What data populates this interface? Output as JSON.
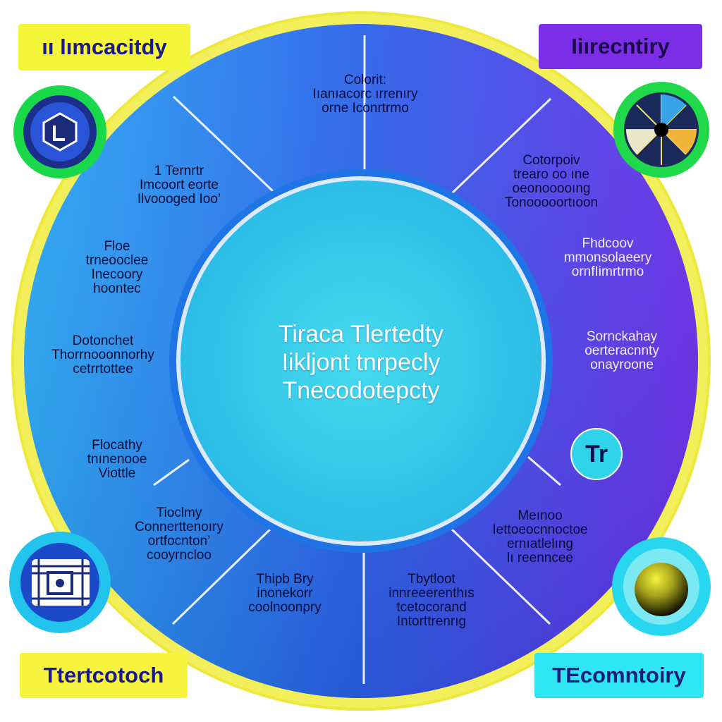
{
  "corner_labels": {
    "top_left": "ıı lımcacitdy",
    "top_right": "Iiırecntiry",
    "bottom_left": "Ttertcotoch",
    "bottom_right": "TEcomntoiry"
  },
  "center": {
    "lines": [
      "Tiraca  Tlertedty",
      "Iikljont tnrpecly",
      "Tnecodotepcty"
    ]
  },
  "segments": [
    {
      "id": "top",
      "lines": [
        "Colorit:",
        "Iıanıacorc ırrenıry",
        "orne Iconrtrmo"
      ]
    },
    {
      "id": "upper-left",
      "lines": [
        "1  Ternrtr",
        "Imcoort eorte",
        "Ilvoooged Ioo’"
      ]
    },
    {
      "id": "left-1",
      "lines": [
        "Floe",
        "trneooclee",
        "Inecoory",
        "hoontec"
      ]
    },
    {
      "id": "left-2",
      "lines": [
        "Dotonchet",
        "Thorrnooonnorhy",
        "cetrrtottee"
      ]
    },
    {
      "id": "left-3",
      "lines": [
        "Flocathy",
        "tnınenooe",
        "Viottle"
      ]
    },
    {
      "id": "lower-left",
      "lines": [
        "Tioclmy",
        "Connerttenoıry",
        "ortfocnton’",
        "cooyrncloo"
      ]
    },
    {
      "id": "bottom-left",
      "lines": [
        "Thipb Bry",
        "inonekorr",
        "coolnoonpry"
      ]
    },
    {
      "id": "bottom-right",
      "lines": [
        "Tbytloot",
        "innreeerenthıs",
        "tcetocorand",
        "Intorttrenrıg"
      ]
    },
    {
      "id": "upper-right",
      "lines": [
        "Cotorpoiv",
        "trearo oo ıne",
        "oeonooooıng",
        "Tonooooortıoon"
      ]
    },
    {
      "id": "right-1",
      "lines": [
        "Fhdcoov",
        "mmonsolaeery",
        "ornfIimrtrmo"
      ]
    },
    {
      "id": "right-2",
      "lines": [
        "Sornckahay",
        "oerteracnnty",
        "onayroone"
      ]
    },
    {
      "id": "lower-right",
      "lines": [
        "Meınoo",
        "Iettoeocnnoctoe",
        "ernıatlelıng",
        "lı reenncee"
      ]
    }
  ],
  "icons": {
    "top_left": "hexagon-logo-icon",
    "top_right": "radial-chart-icon",
    "right_badge_text": "Tr",
    "bottom_left": "circuit-chip-icon",
    "bottom_right": "yellow-sphere-icon"
  },
  "colors": {
    "ring": "#f5f04a",
    "wheel_left": "#2f9df2",
    "wheel_right": "#6a2de8",
    "center_fill": "#34cdea",
    "center_ring": "#1f74e6",
    "divider": "#ffffff"
  }
}
